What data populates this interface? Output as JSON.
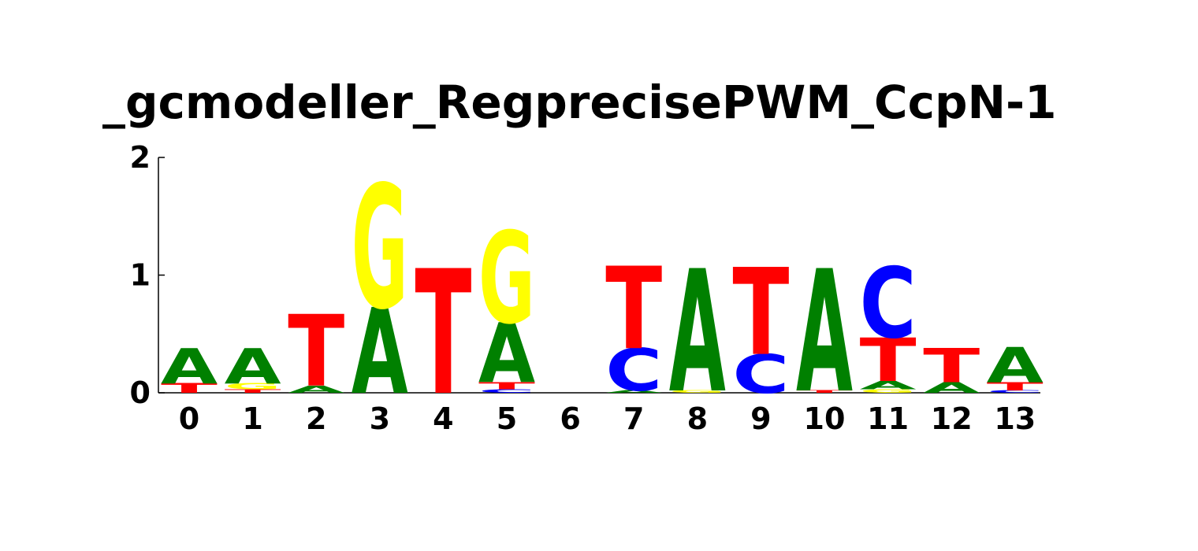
{
  "chart_data": {
    "type": "sequence-logo",
    "title": "_gcmodeller_RegprecisePWM_CcpN-1",
    "xlabel": "",
    "ylabel": "",
    "ylim": [
      0,
      2
    ],
    "y_ticks": [
      "0",
      "1",
      "2"
    ],
    "grid": false,
    "colors": {
      "A": "#008000",
      "C": "#0000ff",
      "G": "#ffff00",
      "T": "#ff0000"
    },
    "positions": [
      {
        "label": "0",
        "stack": [
          {
            "letter": "T",
            "height": 0.08
          },
          {
            "letter": "A",
            "height": 0.3
          }
        ]
      },
      {
        "label": "1",
        "stack": [
          {
            "letter": "T",
            "height": 0.03
          },
          {
            "letter": "G",
            "height": 0.05
          },
          {
            "letter": "A",
            "height": 0.3
          }
        ]
      },
      {
        "label": "2",
        "stack": [
          {
            "letter": "A",
            "height": 0.06
          },
          {
            "letter": "T",
            "height": 0.61
          }
        ]
      },
      {
        "label": "3",
        "stack": [
          {
            "letter": "A",
            "height": 0.73
          },
          {
            "letter": "G",
            "height": 1.05
          }
        ]
      },
      {
        "label": "4",
        "stack": [
          {
            "letter": "T",
            "height": 1.06
          }
        ]
      },
      {
        "label": "5",
        "stack": [
          {
            "letter": "C",
            "height": 0.03
          },
          {
            "letter": "T",
            "height": 0.06
          },
          {
            "letter": "A",
            "height": 0.51
          },
          {
            "letter": "G",
            "height": 0.78
          }
        ]
      },
      {
        "label": "6",
        "stack": []
      },
      {
        "label": "7",
        "stack": [
          {
            "letter": "A",
            "height": 0.02
          },
          {
            "letter": "C",
            "height": 0.36
          },
          {
            "letter": "T",
            "height": 0.7
          }
        ]
      },
      {
        "label": "8",
        "stack": [
          {
            "letter": "G",
            "height": 0.02
          },
          {
            "letter": "A",
            "height": 1.04
          }
        ]
      },
      {
        "label": "9",
        "stack": [
          {
            "letter": "C",
            "height": 0.33
          },
          {
            "letter": "T",
            "height": 0.74
          }
        ]
      },
      {
        "label": "10",
        "stack": [
          {
            "letter": "T",
            "height": 0.02
          },
          {
            "letter": "A",
            "height": 1.04
          }
        ]
      },
      {
        "label": "11",
        "stack": [
          {
            "letter": "G",
            "height": 0.03
          },
          {
            "letter": "A",
            "height": 0.07
          },
          {
            "letter": "T",
            "height": 0.37
          },
          {
            "letter": "C",
            "height": 0.6
          }
        ]
      },
      {
        "label": "12",
        "stack": [
          {
            "letter": "A",
            "height": 0.09
          },
          {
            "letter": "T",
            "height": 0.29
          }
        ]
      },
      {
        "label": "13",
        "stack": [
          {
            "letter": "C",
            "height": 0.02
          },
          {
            "letter": "T",
            "height": 0.07
          },
          {
            "letter": "A",
            "height": 0.3
          }
        ]
      }
    ]
  }
}
